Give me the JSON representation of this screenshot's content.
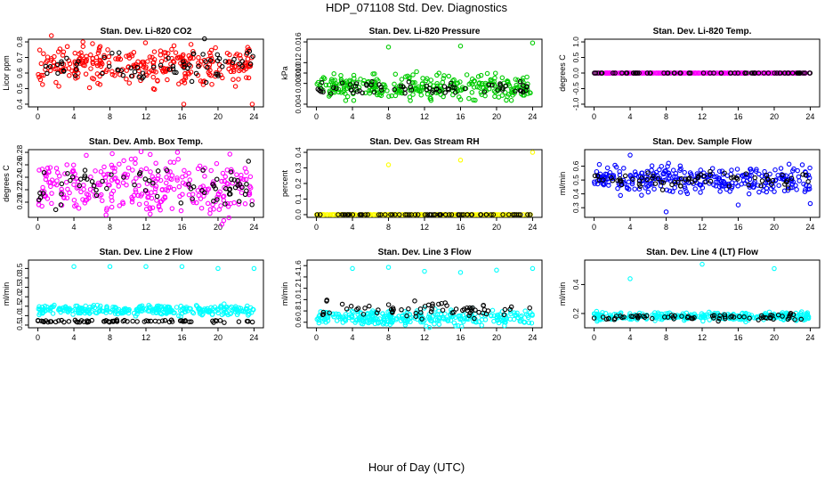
{
  "figure": {
    "title": "HDP_071108  Std. Dev. Diagnostics",
    "xlabel": "Hour of Day (UTC)"
  },
  "chart_data": [
    {
      "type": "scatter",
      "title": "Stan. Dev. Li-820 CO2",
      "ylabel": "Licor ppm",
      "xlim": [
        0,
        24
      ],
      "xticks": [
        0,
        4,
        8,
        12,
        16,
        20,
        24
      ],
      "ylim": [
        0.4,
        0.8
      ],
      "yticks": [
        "0.4",
        "0.5",
        "0.6",
        "0.7",
        "0.8"
      ],
      "series": [
        {
          "color": "#ff0000",
          "band": [
            0.56,
            0.74
          ],
          "outliers": [
            [
              1.5,
              0.84
            ],
            [
              5.0,
              0.8
            ],
            [
              16.2,
              0.4
            ],
            [
              23.8,
              0.4
            ]
          ]
        },
        {
          "color": "#000000",
          "band": [
            0.58,
            0.71
          ],
          "outliers": [
            [
              18.5,
              0.82
            ],
            [
              23.5,
              0.74
            ]
          ]
        }
      ]
    },
    {
      "type": "scatter",
      "title": "Stan. Dev. Li-820 Pressure",
      "ylabel": "kPa",
      "xlim": [
        0,
        24
      ],
      "xticks": [
        0,
        4,
        8,
        12,
        16,
        20,
        24
      ],
      "ylim": [
        0.004,
        0.016
      ],
      "yticks": [
        "0.004",
        "0.008",
        "0.010",
        "0.012",
        "0.016"
      ],
      "series": [
        {
          "color": "#00cc00",
          "band": [
            0.0055,
            0.009
          ],
          "outliers": [
            [
              8.0,
              0.015
            ],
            [
              16.0,
              0.0152
            ],
            [
              24.0,
              0.0158
            ]
          ]
        },
        {
          "color": "#000000",
          "band": [
            0.006,
            0.008
          ],
          "outliers": []
        }
      ]
    },
    {
      "type": "scatter",
      "title": "Stan. Dev. Li-820 Temp.",
      "ylabel": "degrees C",
      "xlim": [
        0,
        24
      ],
      "xticks": [
        0,
        4,
        8,
        12,
        16,
        20,
        24
      ],
      "ylim": [
        -1.0,
        1.0
      ],
      "yticks": [
        "-1.0",
        "-0.5",
        "0.0",
        "0.5",
        "1.0"
      ],
      "series": [
        {
          "color": "#ff00ff",
          "band": [
            0.0,
            0.0
          ],
          "outliers": []
        },
        {
          "color": "#000000",
          "band": [
            0.0,
            0.0
          ],
          "outliers": []
        }
      ]
    },
    {
      "type": "scatter",
      "title": "Stan. Dev. Amb. Box Temp.",
      "ylabel": "degrees C",
      "xlim": [
        0,
        24
      ],
      "xticks": [
        0,
        4,
        8,
        12,
        16,
        20,
        24
      ],
      "ylim": [
        0.18,
        0.28
      ],
      "yticks": [
        "0.20",
        "0.22",
        "0.24",
        "0.26",
        "0.28"
      ],
      "series": [
        {
          "color": "#ff00ff",
          "band": [
            0.19,
            0.26
          ],
          "outliers": [
            [
              15.5,
              0.28
            ]
          ]
        },
        {
          "color": "#000000",
          "band": [
            0.2,
            0.25
          ],
          "outliers": []
        }
      ]
    },
    {
      "type": "scatter",
      "title": "Stan. Dev. Gas Stream RH",
      "ylabel": "percent",
      "xlim": [
        0,
        24
      ],
      "xticks": [
        0,
        4,
        8,
        12,
        16,
        20,
        24
      ],
      "ylim": [
        0.0,
        0.4
      ],
      "yticks": [
        "0.0",
        "0.1",
        "0.2",
        "0.3",
        "0.4"
      ],
      "series": [
        {
          "color": "#ffff00",
          "band": [
            0.0,
            0.0
          ],
          "outliers": [
            [
              8.0,
              0.32
            ],
            [
              16.0,
              0.35
            ],
            [
              24.0,
              0.4
            ]
          ]
        },
        {
          "color": "#000000",
          "band": [
            0.0,
            0.0
          ],
          "outliers": []
        }
      ]
    },
    {
      "type": "scatter",
      "title": "Stan. Dev. Sample Flow",
      "ylabel": "ml/min",
      "xlim": [
        0,
        24
      ],
      "xticks": [
        0,
        4,
        8,
        12,
        16,
        20,
        24
      ],
      "ylim": [
        0.25,
        0.7
      ],
      "yticks": [
        "0.3",
        "0.4",
        "0.5",
        "0.6"
      ],
      "series": [
        {
          "color": "#0000ff",
          "band": [
            0.43,
            0.57
          ],
          "outliers": [
            [
              4.0,
              0.68
            ],
            [
              8.0,
              0.27
            ],
            [
              16.0,
              0.32
            ],
            [
              24.0,
              0.33
            ]
          ]
        },
        {
          "color": "#000000",
          "band": [
            0.45,
            0.55
          ],
          "outliers": []
        }
      ]
    },
    {
      "type": "scatter",
      "title": "Stan. Dev. Line 2 Flow",
      "ylabel": "ml/min",
      "xlim": [
        0,
        24
      ],
      "xticks": [
        0,
        4,
        8,
        12,
        16,
        20,
        24
      ],
      "ylim": [
        0.5,
        3.8
      ],
      "yticks": [
        "0.5",
        "1.0",
        "1.5",
        "2.0",
        "2.5",
        "3.0",
        "3.5"
      ],
      "series": [
        {
          "color": "#00ffff",
          "band": [
            1.1,
            1.5
          ],
          "outliers": [
            [
              4.0,
              3.6
            ],
            [
              8.0,
              3.6
            ],
            [
              12.0,
              3.6
            ],
            [
              16.0,
              3.6
            ],
            [
              20.0,
              3.5
            ],
            [
              24.0,
              3.5
            ]
          ]
        },
        {
          "color": "#000000",
          "band": [
            0.65,
            0.75
          ],
          "outliers": []
        }
      ]
    },
    {
      "type": "scatter",
      "title": "Stan. Dev. Line 3 Flow",
      "ylabel": "ml/min",
      "xlim": [
        0,
        24
      ],
      "xticks": [
        0,
        4,
        8,
        12,
        16,
        20,
        24
      ],
      "ylim": [
        0.55,
        1.65
      ],
      "yticks": [
        "0.6",
        "0.8",
        "1.0",
        "1.2",
        "1.4",
        "1.6"
      ],
      "series": [
        {
          "color": "#00ffff",
          "band": [
            0.58,
            0.78
          ],
          "outliers": [
            [
              4.0,
              1.55
            ],
            [
              8.0,
              1.57
            ],
            [
              12.0,
              1.5
            ],
            [
              16.0,
              1.48
            ],
            [
              20.0,
              1.52
            ],
            [
              24.0,
              1.55
            ]
          ]
        },
        {
          "color": "#000000",
          "band": [
            0.72,
            0.92
          ],
          "outliers": []
        }
      ]
    },
    {
      "type": "scatter",
      "title": "Stan. Dev. Line 4 (LT) Flow",
      "ylabel": "ml/min",
      "xlim": [
        0,
        24
      ],
      "xticks": [
        0,
        4,
        8,
        12,
        16,
        20,
        24
      ],
      "ylim": [
        0.12,
        0.55
      ],
      "yticks": [
        "0.2",
        "0.4"
      ],
      "series": [
        {
          "color": "#00ffff",
          "band": [
            0.16,
            0.2
          ],
          "outliers": [
            [
              4.0,
              0.44
            ],
            [
              12.0,
              0.54
            ],
            [
              20.0,
              0.51
            ]
          ]
        },
        {
          "color": "#000000",
          "band": [
            0.16,
            0.19
          ],
          "outliers": []
        }
      ]
    }
  ]
}
